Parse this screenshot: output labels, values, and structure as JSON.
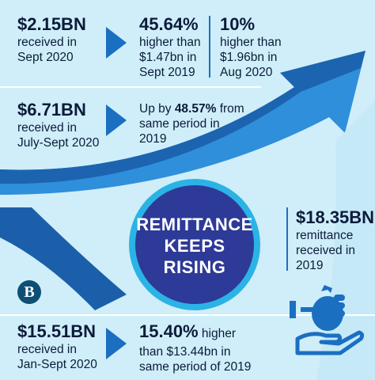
{
  "badge": {
    "line1": "REMITTANCE",
    "line2": "KEEPS",
    "line3": "RISING"
  },
  "logo": {
    "letter": "B"
  },
  "stats": {
    "sept_2020": {
      "amount": "$2.15BN",
      "line1": "received in",
      "line2": "Sept 2020"
    },
    "yoy": {
      "percent": "45.64%",
      "line1": "higher than",
      "line2": "$1.47bn in",
      "line3": "Sept 2019"
    },
    "mom": {
      "percent": "10%",
      "line1": "higher than",
      "line2": "$1.96bn in",
      "line3": "Aug 2020"
    },
    "quarter": {
      "amount": "$6.71BN",
      "line1": "received in",
      "line2": "July-Sept 2020"
    },
    "quarter_change": {
      "prefix": "Up by ",
      "percent": "48.57%",
      "suffix": " from",
      "line2": "same period in",
      "line3": "2019"
    },
    "year_2019": {
      "amount": "$18.35BN",
      "line1": "remittance",
      "line2": "received in",
      "line3": "2019"
    },
    "ytd": {
      "amount": "$15.51BN",
      "line1": "received in",
      "line2": "Jan-Sept 2020"
    },
    "ytd_change": {
      "percent": "15.40%",
      "suffix": " higher",
      "line2": "than $13.44bn in",
      "line3": "same period of 2019"
    }
  },
  "colors": {
    "background": "#cfeef9",
    "arrow_dark": "#1b5faa",
    "arrow_light": "#3a9de0",
    "badge_fill": "#2e3a97",
    "badge_ring": "#2bb3e6",
    "text": "#0c1b3a",
    "icon": "#1b6fc1"
  },
  "icons": [
    "chevron-right-icon",
    "money-bag-hand-icon",
    "logo-icon"
  ]
}
